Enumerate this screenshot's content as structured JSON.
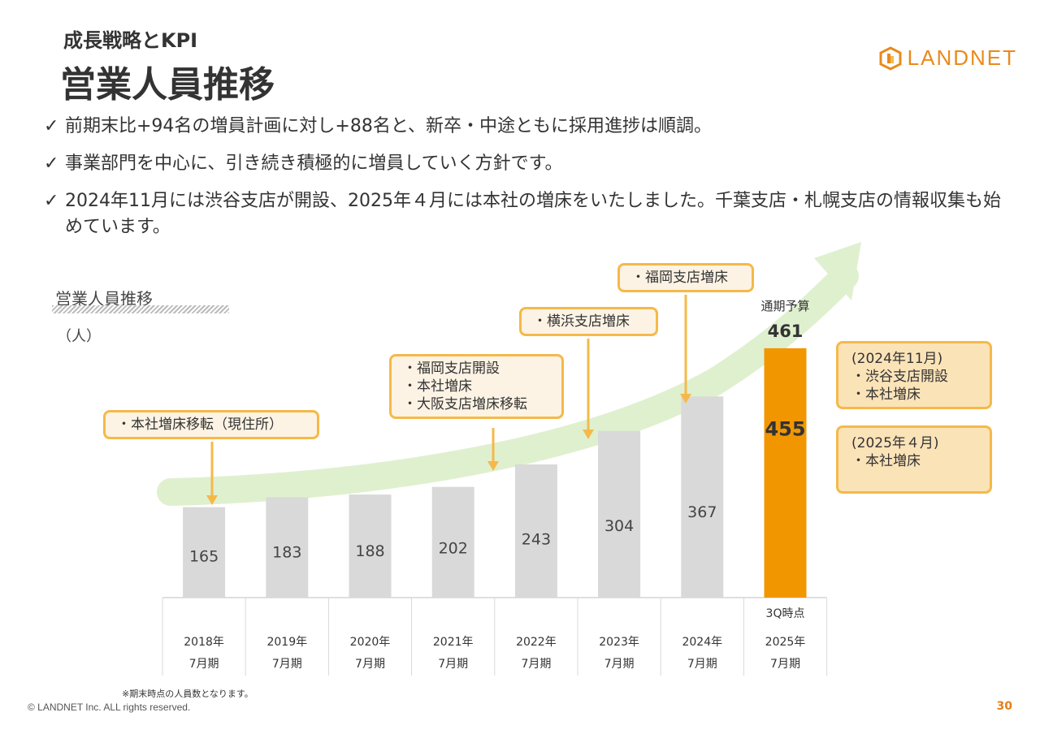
{
  "header": {
    "section": "成長戦略とKPI",
    "title": "営業人員推移"
  },
  "logo": {
    "text": "LANDNET",
    "color": "#e98a1c"
  },
  "bullets": [
    "前期末比+94名の増員計画に対し+88名と、新卒・中途ともに採用進捗は順調。",
    "事業部門を中心に、引き続き積極的に増員していく方針です。",
    "2024年11月には渋谷支店が開設、2025年４月には本社の増床をいたしました。千葉支店・札幌支店の情報収集も始めています。"
  ],
  "check_glyph": "✓",
  "chart_data": {
    "type": "bar",
    "title": "営業人員推移",
    "unit": "（人）",
    "categories": [
      [
        "2018年",
        "7月期"
      ],
      [
        "2019年",
        "7月期"
      ],
      [
        "2020年",
        "7月期"
      ],
      [
        "2021年",
        "7月期"
      ],
      [
        "2022年",
        "7月期"
      ],
      [
        "2023年",
        "7月期"
      ],
      [
        "2024年",
        "7月期"
      ],
      [
        "2025年",
        "7月期"
      ]
    ],
    "values": [
      165,
      183,
      188,
      202,
      243,
      304,
      367,
      455
    ],
    "highlight_index": 7,
    "highlight_note": "3Q時点",
    "forecast_label": "通期予算",
    "forecast_value": 461,
    "ylim": [
      0,
      480
    ],
    "colors": {
      "bar": "#d9d9d9",
      "highlight": "#f29600",
      "arrow": "#dff0cf",
      "pointer": "#f5b94a"
    }
  },
  "callouts": [
    {
      "lines": [
        "・本社増床移転（現住所）"
      ],
      "target_index": 0
    },
    {
      "lines": [
        "・福岡支店開設",
        "・本社増床",
        "・大阪支店増床移転"
      ],
      "target_index": 4
    },
    {
      "lines": [
        "・横浜支店増床"
      ],
      "target_index": 5
    },
    {
      "lines": [
        "・福岡支店増床"
      ],
      "target_index": 6
    }
  ],
  "side_notes": [
    {
      "lines": [
        "(2024年11月)",
        "・渋谷支店開設",
        "・本社増床"
      ]
    },
    {
      "lines": [
        "(2025年４月)",
        "・本社増床"
      ]
    }
  ],
  "footnote": "※期末時点の人員数となります。",
  "copyright": "© LANDNET Inc. ALL rights reserved.",
  "page_number": "30"
}
